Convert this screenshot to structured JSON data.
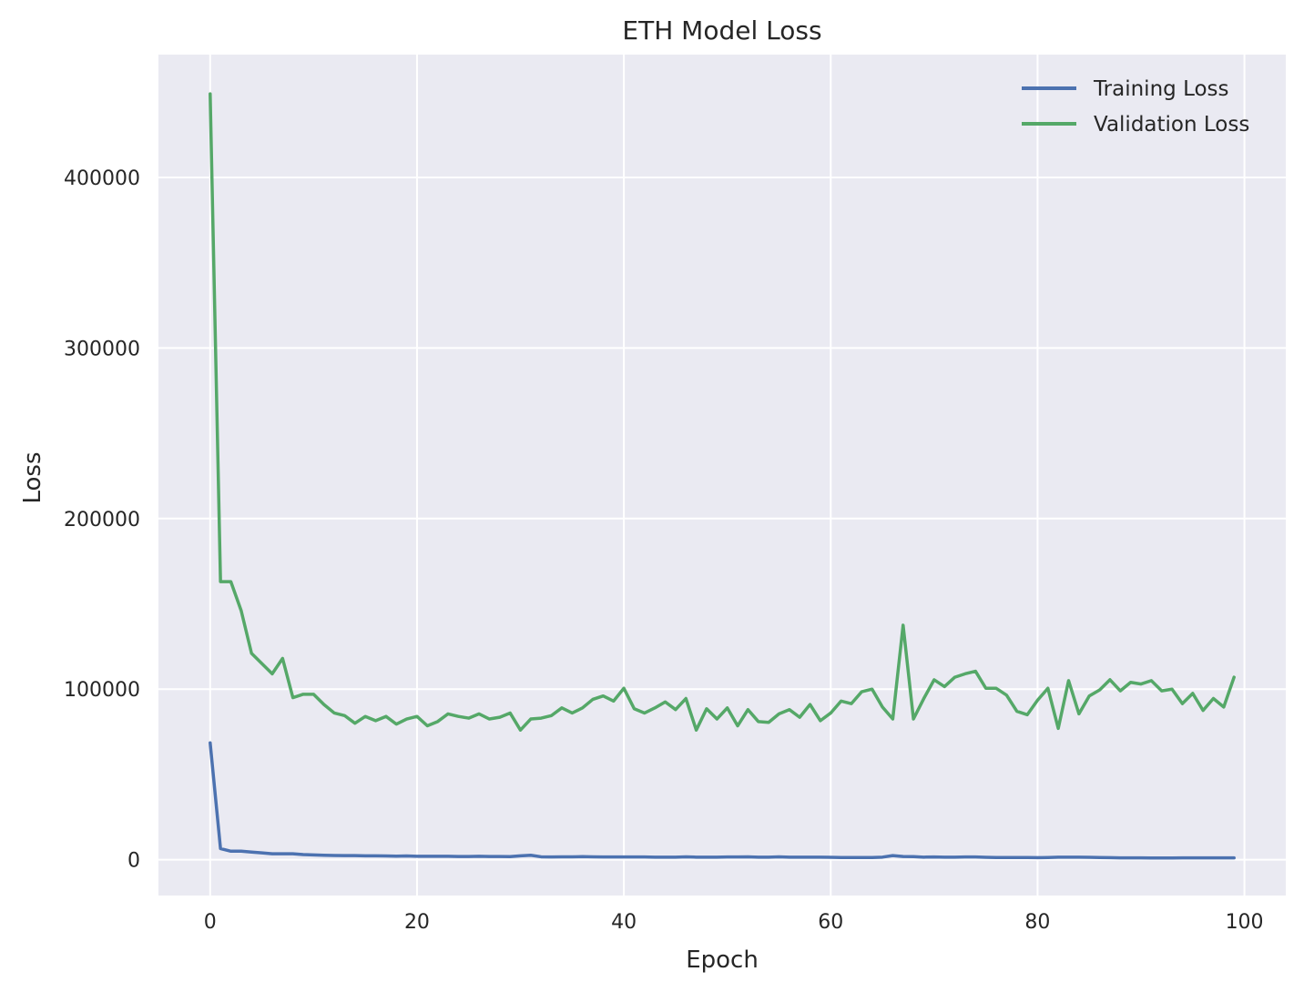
{
  "chart_data": {
    "type": "line",
    "title": "ETH Model Loss",
    "xlabel": "Epoch",
    "ylabel": "Loss",
    "xlim": [
      -5,
      104
    ],
    "ylim": [
      -21000,
      472000
    ],
    "xticks": [
      0,
      20,
      40,
      60,
      80,
      100
    ],
    "yticks": [
      0,
      100000,
      200000,
      300000,
      400000
    ],
    "grid": true,
    "legend_position": "top-right",
    "colors": {
      "background": "#eaeaf2",
      "grid": "#ffffff",
      "training": "#4c72b0",
      "validation": "#55a868"
    },
    "series": [
      {
        "name": "Training Loss",
        "color": "#4c72b0",
        "values": [
          68500,
          6500,
          5000,
          5000,
          4500,
          4000,
          3500,
          3500,
          3500,
          3000,
          2800,
          2600,
          2500,
          2400,
          2400,
          2300,
          2300,
          2200,
          2100,
          2200,
          2000,
          2000,
          2000,
          2000,
          1900,
          1900,
          2000,
          1900,
          1900,
          1800,
          2300,
          2600,
          1700,
          1600,
          1700,
          1700,
          1800,
          1700,
          1600,
          1600,
          1600,
          1600,
          1600,
          1500,
          1500,
          1500,
          1700,
          1500,
          1500,
          1500,
          1600,
          1600,
          1700,
          1500,
          1500,
          1700,
          1500,
          1500,
          1500,
          1500,
          1400,
          1300,
          1300,
          1300,
          1300,
          1500,
          2400,
          1900,
          1800,
          1500,
          1600,
          1500,
          1500,
          1600,
          1600,
          1400,
          1300,
          1300,
          1300,
          1300,
          1200,
          1300,
          1500,
          1500,
          1500,
          1400,
          1300,
          1200,
          1100,
          1100,
          1100,
          1000,
          1000,
          1000,
          1100,
          1100,
          1100,
          1100,
          1100,
          1100
        ]
      },
      {
        "name": "Validation Loss",
        "color": "#55a868",
        "values": [
          449000,
          163000,
          163000,
          146000,
          121000,
          115000,
          109000,
          118000,
          95000,
          97000,
          97000,
          91000,
          86000,
          84500,
          80000,
          84000,
          81500,
          84000,
          79500,
          82500,
          84000,
          78500,
          81000,
          85500,
          84000,
          83000,
          85500,
          82500,
          83500,
          86000,
          76000,
          82500,
          83000,
          84500,
          89000,
          86000,
          89000,
          94000,
          96000,
          93000,
          100500,
          88500,
          86000,
          89000,
          92500,
          88000,
          94500,
          76000,
          88500,
          82500,
          89000,
          78500,
          88000,
          81000,
          80500,
          85500,
          88000,
          83500,
          91000,
          81500,
          86000,
          93000,
          91500,
          98500,
          100000,
          89500,
          82500,
          137500,
          82500,
          94500,
          105500,
          101500,
          107000,
          109000,
          110500,
          100500,
          100500,
          96500,
          87000,
          85000,
          93500,
          100500,
          77000,
          105000,
          85500,
          96000,
          99500,
          105500,
          99000,
          104000,
          103000,
          105000,
          99000,
          100000,
          91500,
          97500,
          87500,
          94500,
          89500,
          107000
        ]
      }
    ]
  }
}
